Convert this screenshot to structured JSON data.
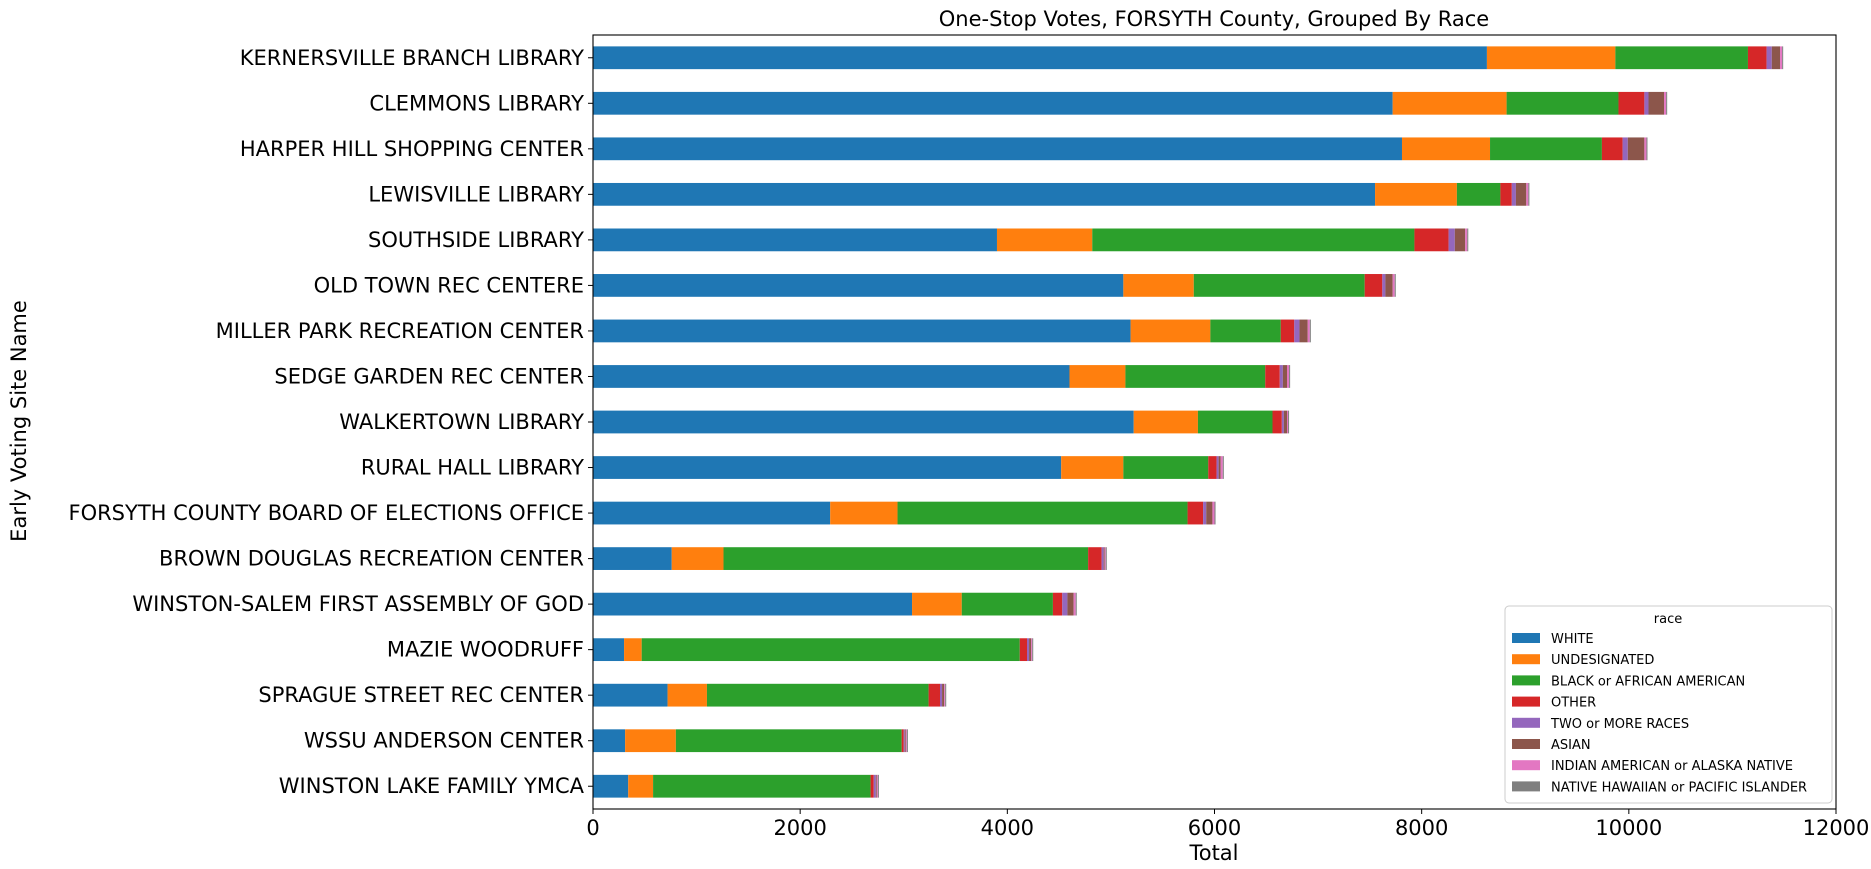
{
  "chart_data": {
    "type": "bar",
    "orientation": "horizontal",
    "stacked": true,
    "title": "One-Stop Votes, FORSYTH County, Grouped By Race",
    "xlabel": "Total",
    "ylabel": "Early Voting Site Name",
    "xlim": [
      0,
      12000
    ],
    "xticks": [
      "0",
      "2000",
      "4000",
      "6000",
      "8000",
      "10000",
      "12000"
    ],
    "grid": false,
    "legend": {
      "title": "race",
      "position": "lower-right"
    },
    "categories": [
      "KERNERSVILLE BRANCH LIBRARY",
      "CLEMMONS LIBRARY",
      "HARPER HILL  SHOPPING CENTER",
      "LEWISVILLE LIBRARY",
      "SOUTHSIDE LIBRARY",
      "OLD TOWN REC CENTERE",
      "MILLER PARK RECREATION CENTER",
      "SEDGE GARDEN REC CENTER",
      "WALKERTOWN LIBRARY",
      "RURAL HALL LIBRARY",
      "FORSYTH COUNTY BOARD OF ELECTIONS OFFICE",
      "BROWN DOUGLAS RECREATION CENTER",
      "WINSTON-SALEM FIRST ASSEMBLY OF GOD",
      "MAZIE WOODRUFF",
      "SPRAGUE STREET REC CENTER",
      "WSSU ANDERSON CENTER",
      "WINSTON LAKE FAMILY YMCA"
    ],
    "series": [
      {
        "name": "WHITE",
        "color": "#1f77b4",
        "values": [
          8630,
          7720,
          7810,
          7550,
          3900,
          5120,
          5190,
          4600,
          5220,
          4520,
          2290,
          760,
          3080,
          300,
          720,
          310,
          340
        ]
      },
      {
        "name": "UNDESIGNATED",
        "color": "#ff7f0e",
        "values": [
          1240,
          1100,
          850,
          790,
          920,
          680,
          770,
          540,
          620,
          600,
          650,
          500,
          480,
          170,
          380,
          490,
          240
        ]
      },
      {
        "name": "BLACK or AFRICAN AMERICAN",
        "color": "#2ca02c",
        "values": [
          1280,
          1080,
          1080,
          420,
          3110,
          1650,
          680,
          1350,
          720,
          820,
          2800,
          3520,
          880,
          3650,
          2140,
          2180,
          2100
        ]
      },
      {
        "name": "OTHER",
        "color": "#d62728",
        "values": [
          180,
          250,
          200,
          110,
          330,
          170,
          130,
          140,
          90,
          80,
          150,
          130,
          90,
          70,
          110,
          20,
          30
        ]
      },
      {
        "name": "TWO or MORE RACES",
        "color": "#9467bd",
        "values": [
          50,
          40,
          50,
          40,
          60,
          30,
          50,
          30,
          20,
          20,
          30,
          20,
          50,
          20,
          20,
          10,
          20
        ]
      },
      {
        "name": "ASIAN",
        "color": "#8c564b",
        "values": [
          80,
          150,
          160,
          100,
          100,
          70,
          80,
          40,
          30,
          20,
          60,
          10,
          60,
          20,
          20,
          10,
          10
        ]
      },
      {
        "name": "INDIAN AMERICAN or ALASKA NATIVE",
        "color": "#e377c2",
        "values": [
          20,
          20,
          20,
          20,
          20,
          20,
          20,
          20,
          10,
          20,
          20,
          10,
          20,
          10,
          10,
          10,
          10
        ]
      },
      {
        "name": "NATIVE HAWAIIAN or PACIFIC ISLANDER",
        "color": "#7f7f7f",
        "values": [
          10,
          10,
          10,
          10,
          10,
          10,
          10,
          10,
          10,
          10,
          10,
          10,
          10,
          10,
          10,
          10,
          10
        ]
      }
    ]
  }
}
